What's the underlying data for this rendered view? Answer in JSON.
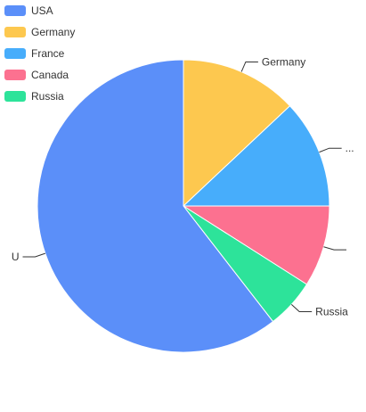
{
  "colors": {
    "usa": "#5b8ff9",
    "germany": "#fdc84f",
    "france": "#47adfb",
    "canada": "#fc7190",
    "russia": "#2de39a"
  },
  "chart_data": {
    "type": "pie",
    "legend_position": "top-left",
    "slices": [
      {
        "name": "USA",
        "value": 60.5,
        "label": "U",
        "color": "#5b8ff9"
      },
      {
        "name": "Germany",
        "value": 13.0,
        "label": "Germany",
        "color": "#fdc84f"
      },
      {
        "name": "France",
        "value": 12.0,
        "label": "...",
        "color": "#47adfb"
      },
      {
        "name": "Canada",
        "value": 9.0,
        "label": "",
        "color": "#fc7190"
      },
      {
        "name": "Russia",
        "value": 5.5,
        "label": "Russia",
        "color": "#2de39a"
      }
    ]
  }
}
